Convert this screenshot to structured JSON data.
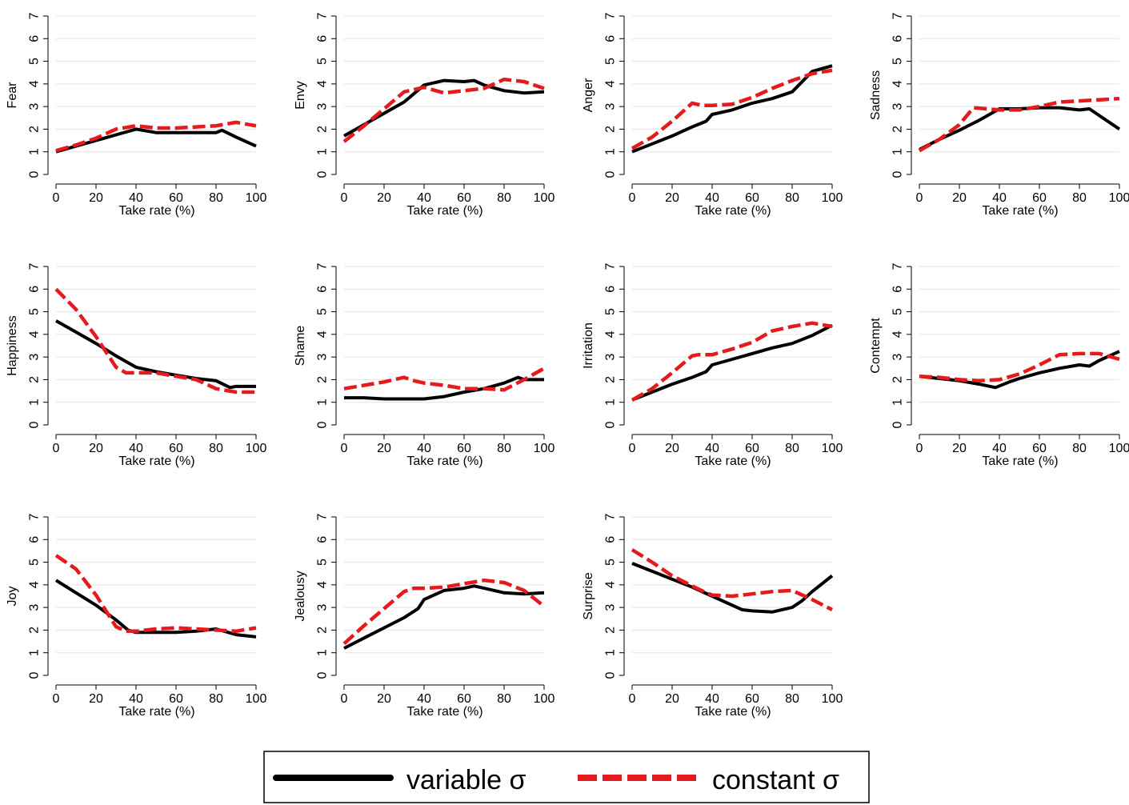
{
  "chart_data": [
    {
      "type": "line",
      "ylabel": "Fear",
      "xlabel": "Take rate (%)",
      "xlim": [
        0,
        100
      ],
      "ylim": [
        0,
        7
      ],
      "x_ticks": [
        0,
        20,
        40,
        60,
        80,
        100
      ],
      "y_ticks": [
        0,
        1,
        2,
        3,
        4,
        5,
        6,
        7
      ],
      "grid": true,
      "series": [
        {
          "name": "variable σ",
          "x": [
            0,
            10,
            20,
            30,
            40,
            50,
            60,
            70,
            80,
            83,
            90,
            100
          ],
          "y": [
            1.0,
            1.25,
            1.5,
            1.75,
            2.0,
            1.85,
            1.85,
            1.85,
            1.85,
            1.95,
            1.65,
            1.25
          ]
        },
        {
          "name": "constant σ",
          "x": [
            0,
            10,
            20,
            30,
            40,
            50,
            60,
            70,
            80,
            90,
            100
          ],
          "y": [
            1.05,
            1.3,
            1.6,
            2.0,
            2.15,
            2.05,
            2.05,
            2.1,
            2.15,
            2.3,
            2.15
          ]
        }
      ]
    },
    {
      "type": "line",
      "ylabel": "Envy",
      "xlabel": "Take rate (%)",
      "xlim": [
        0,
        100
      ],
      "ylim": [
        0,
        7
      ],
      "x_ticks": [
        0,
        20,
        40,
        60,
        80,
        100
      ],
      "y_ticks": [
        0,
        1,
        2,
        3,
        4,
        5,
        6,
        7
      ],
      "grid": true,
      "series": [
        {
          "name": "variable σ",
          "x": [
            0,
            10,
            20,
            30,
            40,
            50,
            60,
            65,
            70,
            80,
            90,
            100
          ],
          "y": [
            1.7,
            2.2,
            2.7,
            3.2,
            3.95,
            4.15,
            4.1,
            4.15,
            3.95,
            3.7,
            3.6,
            3.65
          ]
        },
        {
          "name": "constant σ",
          "x": [
            0,
            10,
            20,
            30,
            40,
            50,
            60,
            70,
            80,
            90,
            100
          ],
          "y": [
            1.45,
            2.15,
            2.9,
            3.65,
            3.85,
            3.6,
            3.7,
            3.8,
            4.2,
            4.1,
            3.8
          ]
        }
      ]
    },
    {
      "type": "line",
      "ylabel": "Anger",
      "xlabel": "Take rate (%)",
      "xlim": [
        0,
        100
      ],
      "ylim": [
        0,
        7
      ],
      "x_ticks": [
        0,
        20,
        40,
        60,
        80,
        100
      ],
      "y_ticks": [
        0,
        1,
        2,
        3,
        4,
        5,
        6,
        7
      ],
      "grid": true,
      "series": [
        {
          "name": "variable σ",
          "x": [
            0,
            10,
            20,
            30,
            37,
            40,
            50,
            60,
            70,
            80,
            90,
            100
          ],
          "y": [
            1.0,
            1.35,
            1.7,
            2.1,
            2.35,
            2.65,
            2.85,
            3.15,
            3.35,
            3.65,
            4.55,
            4.8
          ]
        },
        {
          "name": "constant σ",
          "x": [
            0,
            10,
            20,
            30,
            35,
            40,
            50,
            60,
            70,
            80,
            90,
            100
          ],
          "y": [
            1.15,
            1.65,
            2.35,
            3.15,
            3.05,
            3.05,
            3.1,
            3.4,
            3.8,
            4.15,
            4.45,
            4.6
          ]
        }
      ]
    },
    {
      "type": "line",
      "ylabel": "Sadness",
      "xlabel": "Take rate (%)",
      "xlim": [
        0,
        100
      ],
      "ylim": [
        0,
        7
      ],
      "x_ticks": [
        0,
        20,
        40,
        60,
        80,
        100
      ],
      "y_ticks": [
        0,
        1,
        2,
        3,
        4,
        5,
        6,
        7
      ],
      "grid": true,
      "series": [
        {
          "name": "variable σ",
          "x": [
            0,
            10,
            20,
            30,
            40,
            50,
            60,
            70,
            80,
            85,
            90,
            100
          ],
          "y": [
            1.1,
            1.55,
            1.95,
            2.4,
            2.9,
            2.9,
            2.95,
            2.95,
            2.85,
            2.9,
            2.6,
            2.0
          ]
        },
        {
          "name": "constant σ",
          "x": [
            0,
            10,
            20,
            27,
            40,
            50,
            60,
            70,
            80,
            90,
            100
          ],
          "y": [
            1.05,
            1.55,
            2.2,
            2.95,
            2.85,
            2.85,
            3.0,
            3.2,
            3.25,
            3.3,
            3.35
          ]
        }
      ]
    },
    {
      "type": "line",
      "ylabel": "Happiness",
      "xlabel": "Take rate (%)",
      "xlim": [
        0,
        100
      ],
      "ylim": [
        0,
        7
      ],
      "x_ticks": [
        0,
        20,
        40,
        60,
        80,
        100
      ],
      "y_ticks": [
        0,
        1,
        2,
        3,
        4,
        5,
        6,
        7
      ],
      "grid": true,
      "series": [
        {
          "name": "variable σ",
          "x": [
            0,
            10,
            20,
            30,
            40,
            50,
            60,
            70,
            80,
            87,
            90,
            100
          ],
          "y": [
            4.6,
            4.1,
            3.6,
            3.05,
            2.55,
            2.35,
            2.2,
            2.05,
            1.95,
            1.65,
            1.7,
            1.7
          ]
        },
        {
          "name": "constant σ",
          "x": [
            0,
            10,
            20,
            30,
            35,
            40,
            50,
            60,
            70,
            80,
            90,
            100
          ],
          "y": [
            6.0,
            5.1,
            3.9,
            2.55,
            2.3,
            2.3,
            2.3,
            2.15,
            2.0,
            1.6,
            1.45,
            1.45
          ]
        }
      ]
    },
    {
      "type": "line",
      "ylabel": "Shame",
      "xlabel": "Take rate (%)",
      "xlim": [
        0,
        100
      ],
      "ylim": [
        0,
        7
      ],
      "x_ticks": [
        0,
        20,
        40,
        60,
        80,
        100
      ],
      "y_ticks": [
        0,
        1,
        2,
        3,
        4,
        5,
        6,
        7
      ],
      "grid": true,
      "series": [
        {
          "name": "variable σ",
          "x": [
            0,
            10,
            20,
            30,
            40,
            50,
            60,
            70,
            80,
            87,
            90,
            100
          ],
          "y": [
            1.2,
            1.2,
            1.15,
            1.15,
            1.15,
            1.25,
            1.45,
            1.6,
            1.85,
            2.1,
            2.0,
            2.0
          ]
        },
        {
          "name": "constant σ",
          "x": [
            0,
            10,
            20,
            30,
            35,
            40,
            50,
            60,
            70,
            80,
            90,
            100
          ],
          "y": [
            1.6,
            1.75,
            1.9,
            2.1,
            1.95,
            1.85,
            1.75,
            1.6,
            1.6,
            1.55,
            2.0,
            2.5
          ]
        }
      ]
    },
    {
      "type": "line",
      "ylabel": "Irritation",
      "xlabel": "Take rate (%)",
      "xlim": [
        0,
        100
      ],
      "ylim": [
        0,
        7
      ],
      "x_ticks": [
        0,
        20,
        40,
        60,
        80,
        100
      ],
      "y_ticks": [
        0,
        1,
        2,
        3,
        4,
        5,
        6,
        7
      ],
      "grid": true,
      "series": [
        {
          "name": "variable σ",
          "x": [
            0,
            10,
            20,
            30,
            37,
            40,
            50,
            60,
            70,
            80,
            90,
            100
          ],
          "y": [
            1.1,
            1.45,
            1.8,
            2.1,
            2.35,
            2.65,
            2.9,
            3.15,
            3.4,
            3.6,
            3.95,
            4.4
          ]
        },
        {
          "name": "constant σ",
          "x": [
            0,
            10,
            20,
            30,
            33,
            40,
            50,
            60,
            70,
            80,
            90,
            100
          ],
          "y": [
            1.1,
            1.6,
            2.3,
            3.05,
            3.1,
            3.1,
            3.35,
            3.65,
            4.15,
            4.35,
            4.5,
            4.35
          ]
        }
      ]
    },
    {
      "type": "line",
      "ylabel": "Contempt",
      "xlabel": "Take rate (%)",
      "xlim": [
        0,
        100
      ],
      "ylim": [
        0,
        7
      ],
      "x_ticks": [
        0,
        20,
        40,
        60,
        80,
        100
      ],
      "y_ticks": [
        0,
        1,
        2,
        3,
        4,
        5,
        6,
        7
      ],
      "grid": true,
      "series": [
        {
          "name": "variable σ",
          "x": [
            0,
            10,
            20,
            30,
            38,
            45,
            50,
            60,
            70,
            80,
            85,
            90,
            100
          ],
          "y": [
            2.15,
            2.05,
            1.95,
            1.8,
            1.65,
            1.9,
            2.05,
            2.3,
            2.5,
            2.65,
            2.6,
            2.85,
            3.25
          ]
        },
        {
          "name": "constant σ",
          "x": [
            0,
            10,
            20,
            30,
            40,
            50,
            60,
            70,
            80,
            90,
            100
          ],
          "y": [
            2.15,
            2.1,
            2.0,
            1.95,
            2.0,
            2.25,
            2.65,
            3.1,
            3.15,
            3.15,
            2.9
          ]
        }
      ]
    },
    {
      "type": "line",
      "ylabel": "Joy",
      "xlabel": "Take rate (%)",
      "xlim": [
        0,
        100
      ],
      "ylim": [
        0,
        7
      ],
      "x_ticks": [
        0,
        20,
        40,
        60,
        80,
        100
      ],
      "y_ticks": [
        0,
        1,
        2,
        3,
        4,
        5,
        6,
        7
      ],
      "grid": true,
      "series": [
        {
          "name": "variable σ",
          "x": [
            0,
            10,
            20,
            30,
            36,
            40,
            50,
            60,
            70,
            80,
            90,
            100
          ],
          "y": [
            4.2,
            3.65,
            3.1,
            2.45,
            2.0,
            1.9,
            1.9,
            1.9,
            1.95,
            2.05,
            1.8,
            1.7
          ]
        },
        {
          "name": "constant σ",
          "x": [
            0,
            10,
            20,
            30,
            35,
            40,
            50,
            60,
            70,
            80,
            90,
            100
          ],
          "y": [
            5.3,
            4.7,
            3.55,
            2.15,
            1.95,
            1.95,
            2.05,
            2.1,
            2.05,
            2.0,
            1.95,
            2.1
          ]
        }
      ]
    },
    {
      "type": "line",
      "ylabel": "Jealousy",
      "xlabel": "Take rate (%)",
      "xlim": [
        0,
        100
      ],
      "ylim": [
        0,
        7
      ],
      "x_ticks": [
        0,
        20,
        40,
        60,
        80,
        100
      ],
      "y_ticks": [
        0,
        1,
        2,
        3,
        4,
        5,
        6,
        7
      ],
      "grid": true,
      "series": [
        {
          "name": "variable σ",
          "x": [
            0,
            10,
            20,
            30,
            37,
            40,
            50,
            60,
            65,
            70,
            80,
            90,
            100
          ],
          "y": [
            1.2,
            1.65,
            2.1,
            2.55,
            2.95,
            3.35,
            3.75,
            3.85,
            3.95,
            3.85,
            3.65,
            3.6,
            3.65
          ]
        },
        {
          "name": "constant σ",
          "x": [
            0,
            10,
            20,
            30,
            35,
            40,
            50,
            60,
            70,
            80,
            90,
            100
          ],
          "y": [
            1.4,
            2.2,
            2.95,
            3.7,
            3.85,
            3.85,
            3.9,
            4.05,
            4.2,
            4.1,
            3.75,
            3.05
          ]
        }
      ]
    },
    {
      "type": "line",
      "ylabel": "Surprise",
      "xlabel": "Take rate (%)",
      "xlim": [
        0,
        100
      ],
      "ylim": [
        0,
        7
      ],
      "x_ticks": [
        0,
        20,
        40,
        60,
        80,
        100
      ],
      "y_ticks": [
        0,
        1,
        2,
        3,
        4,
        5,
        6,
        7
      ],
      "grid": true,
      "series": [
        {
          "name": "variable σ",
          "x": [
            0,
            10,
            20,
            30,
            40,
            50,
            55,
            60,
            70,
            80,
            85,
            90,
            100
          ],
          "y": [
            4.95,
            4.6,
            4.25,
            3.9,
            3.5,
            3.1,
            2.9,
            2.85,
            2.8,
            3.0,
            3.3,
            3.7,
            4.4
          ]
        },
        {
          "name": "constant σ",
          "x": [
            0,
            10,
            20,
            30,
            37,
            40,
            50,
            60,
            70,
            80,
            90,
            100
          ],
          "y": [
            5.55,
            5.0,
            4.4,
            3.95,
            3.65,
            3.55,
            3.5,
            3.6,
            3.7,
            3.75,
            3.35,
            2.9
          ]
        }
      ]
    }
  ],
  "legend": {
    "position": "bottom",
    "items": [
      {
        "label": "variable σ",
        "color": "#000000",
        "style": "solid"
      },
      {
        "label": "constant σ",
        "color": "#e41a1c",
        "style": "dashed"
      }
    ]
  }
}
